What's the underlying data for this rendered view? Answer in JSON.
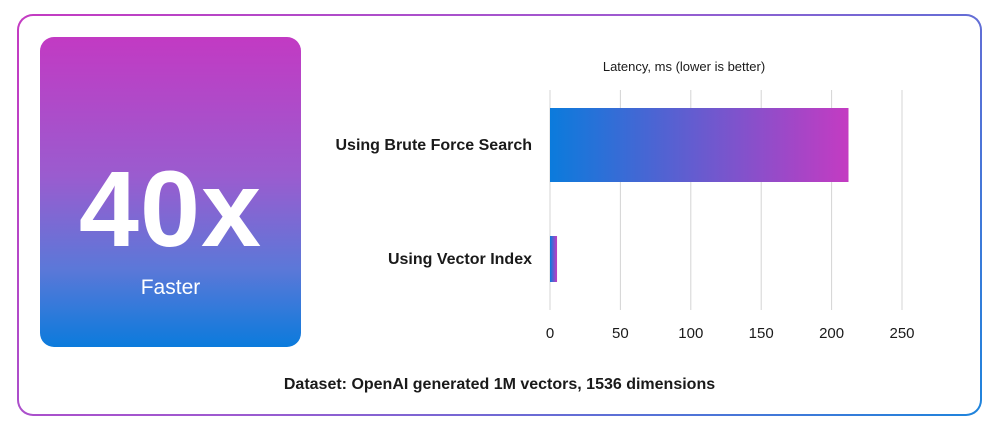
{
  "stat": {
    "value": "40x",
    "label": "Faster"
  },
  "footer": {
    "text": "Dataset: OpenAI generated 1M vectors, 1536 dimensions"
  },
  "colors": {
    "gradient_start": "#0b7bdc",
    "gradient_end": "#c43bc2",
    "grid": "#d4d4d4",
    "text": "#1a1a1a"
  },
  "chart_data": {
    "type": "bar",
    "orientation": "horizontal",
    "title": "Latency, ms (lower is better)",
    "categories": [
      "Using Brute Force Search",
      "Using Vector Index"
    ],
    "values": [
      212,
      5
    ],
    "xlim": [
      0,
      250
    ],
    "xticks": [
      0,
      50,
      100,
      150,
      200,
      250
    ],
    "grid": "vertical",
    "legend": "none"
  }
}
